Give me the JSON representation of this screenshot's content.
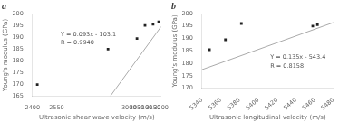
{
  "chart_data": [
    {
      "type": "scatter",
      "title": "a",
      "xlabel": "Ultrasonic shear wave velocity (m/s)",
      "ylabel": "Young's modulus (GPa)",
      "series": [
        {
          "type": "scatter",
          "color": "#222222",
          "marker": "square",
          "x": [
            2430,
            2870,
            3050,
            3100,
            3150,
            3185
          ],
          "values": [
            170.0,
            185.0,
            189.5,
            195.0,
            195.5,
            196.5
          ]
        },
        {
          "type": "line",
          "color": "#aaaaaa",
          "line_style": "solid",
          "x": [
            2885,
            3200
          ],
          "values": [
            165.205,
            194.5
          ]
        }
      ],
      "xlim": [
        2400,
        3200
      ],
      "ylim": [
        165,
        200
      ],
      "xticks": [
        2400,
        2550,
        3000,
        3050,
        3100,
        3150,
        3200
      ],
      "yticks": [
        165,
        170,
        175,
        180,
        185,
        190,
        195,
        200
      ],
      "annotations": [
        "Y = 0.093x - 103.1",
        "R = 0.9940"
      ],
      "grid": false
    },
    {
      "type": "scatter",
      "title": "b",
      "xlabel": "Ultrasonic longitudinal velocity (m/s)",
      "ylabel": "Young's modulus (GPa)",
      "series": [
        {
          "type": "scatter",
          "color": "#222222",
          "marker": "square",
          "x": [
            5348,
            5365,
            5382,
            5458,
            5463
          ],
          "values": [
            185.5,
            189.5,
            196.0,
            195.0,
            195.5
          ]
        },
        {
          "type": "line",
          "color": "#aaaaaa",
          "line_style": "solid",
          "x": [
            5340,
            5480
          ],
          "values": [
            177.5,
            196.4
          ]
        }
      ],
      "xlim": [
        5340,
        5480
      ],
      "ylim": [
        170,
        200
      ],
      "xticks": [
        5340,
        5360,
        5380,
        5400,
        5420,
        5440,
        5460,
        5480
      ],
      "yticks": [
        170,
        175,
        180,
        185,
        190,
        195,
        200
      ],
      "annotations": [
        "Y = 0.135x - 543.4",
        "R = 0.8158"
      ],
      "grid": false
    }
  ]
}
